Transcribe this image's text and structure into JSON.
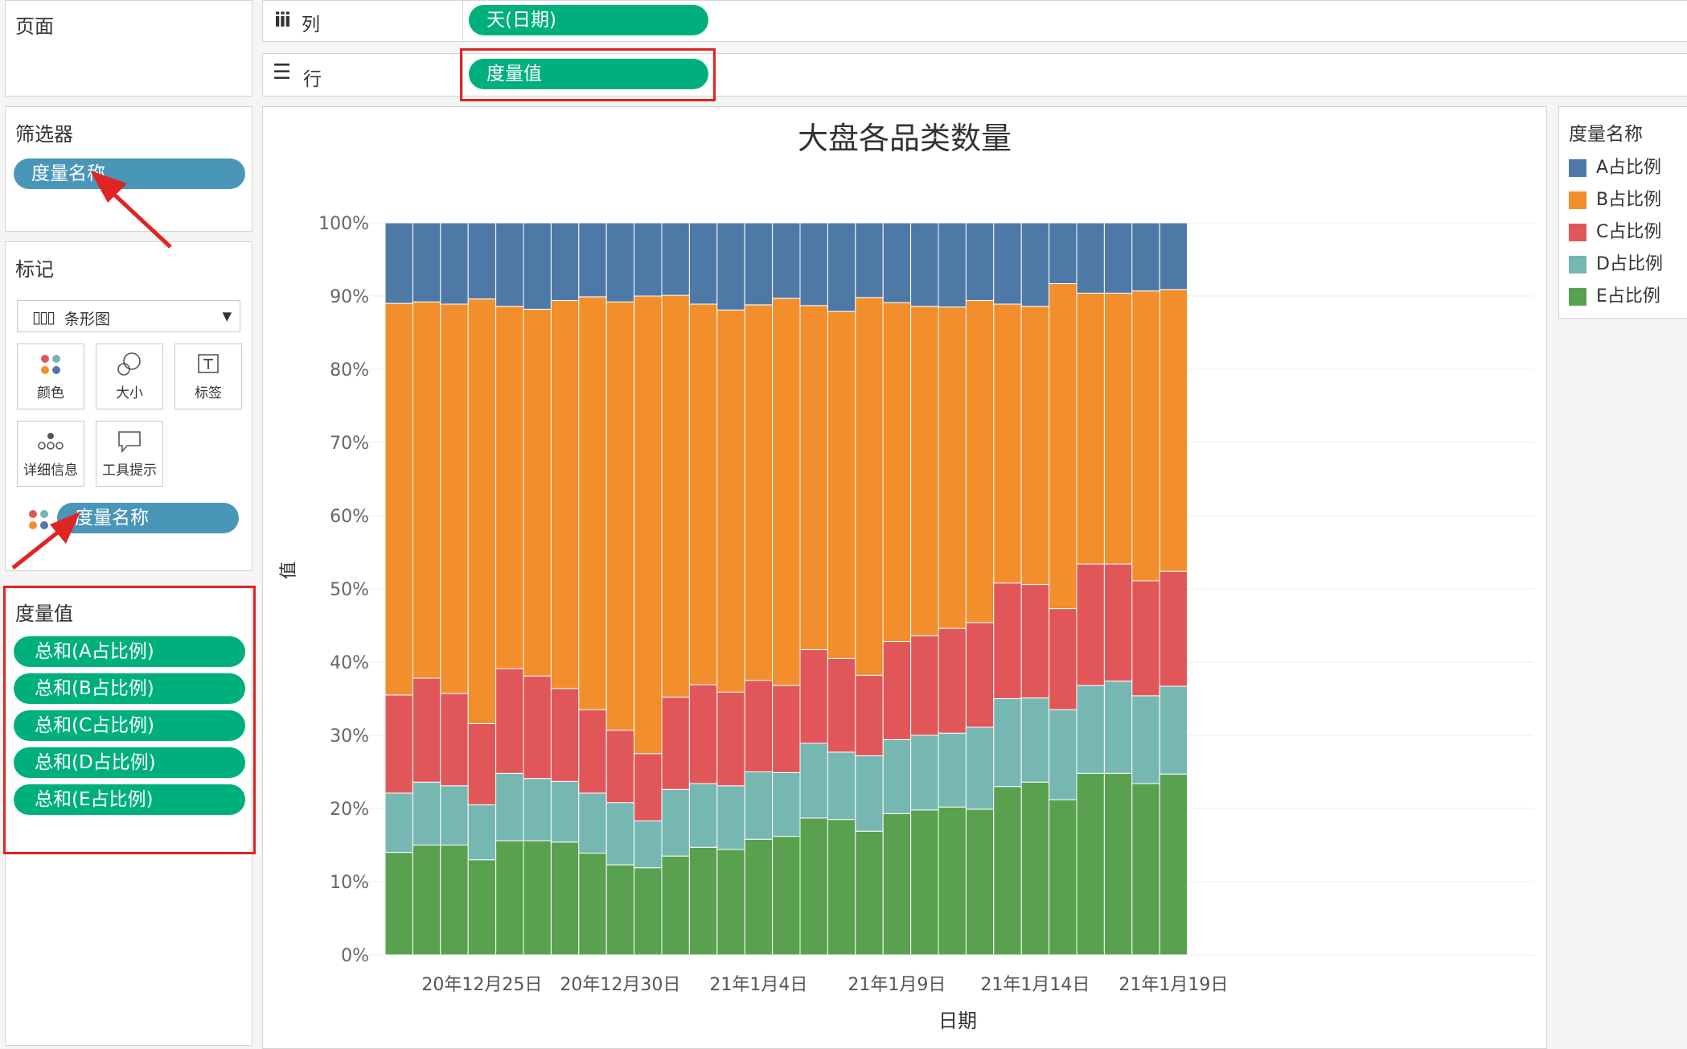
{
  "shelves": {
    "pages_title": "页面",
    "columns_label": "列",
    "columns_pill": "天(日期)",
    "rows_label": "行",
    "rows_pill": "度量值"
  },
  "filters": {
    "title": "筛选器",
    "pill": "度量名称"
  },
  "marks": {
    "title": "标记",
    "type_label": "条形图",
    "buttons": [
      "颜色",
      "大小",
      "标签",
      "详细信息",
      "工具提示"
    ],
    "color_pill": "度量名称"
  },
  "measure_values": {
    "title": "度量值",
    "pills": [
      "总和(A占比例)",
      "总和(B占比例)",
      "总和(C占比例)",
      "总和(D占比例)",
      "总和(E占比例)"
    ]
  },
  "legend": {
    "title": "度量名称",
    "items": [
      {
        "label": "A占比例",
        "color": "#4e79a7"
      },
      {
        "label": "B占比例",
        "color": "#f28e2b"
      },
      {
        "label": "C占比例",
        "color": "#e15759"
      },
      {
        "label": "D占比例",
        "color": "#76b7b2"
      },
      {
        "label": "E占比例",
        "color": "#59a14f"
      }
    ]
  },
  "chart_data": {
    "type": "bar",
    "stacked": true,
    "title": "大盘各品类数量",
    "xlabel": "日期",
    "ylabel": "值",
    "ylim": [
      0,
      1
    ],
    "yticks": [
      "0%",
      "10%",
      "20%",
      "30%",
      "40%",
      "50%",
      "60%",
      "70%",
      "80%",
      "90%",
      "100%"
    ],
    "xtick_labels": [
      "20年12月25日",
      "20年12月30日",
      "21年1月4日",
      "21年1月9日",
      "21年1月14日",
      "21年1月19日"
    ],
    "x": [
      "2020-12-22",
      "2020-12-23",
      "2020-12-24",
      "2020-12-25",
      "2020-12-26",
      "2020-12-27",
      "2020-12-28",
      "2020-12-29",
      "2020-12-30",
      "2020-12-31",
      "2021-01-01",
      "2021-01-02",
      "2021-01-03",
      "2021-01-04",
      "2021-01-05",
      "2021-01-06",
      "2021-01-07",
      "2021-01-08",
      "2021-01-09",
      "2021-01-10",
      "2021-01-11",
      "2021-01-12",
      "2021-01-13",
      "2021-01-14",
      "2021-01-15",
      "2021-01-16",
      "2021-01-17",
      "2021-01-18",
      "2021-01-19",
      "2021-01-20"
    ],
    "series": [
      {
        "name": "E占比例",
        "values": [
          0.14,
          0.15,
          0.15,
          0.13,
          0.156,
          0.156,
          0.154,
          0.139,
          0.123,
          0.119,
          0.135,
          0.147,
          0.144,
          0.158,
          0.162,
          0.187,
          0.185,
          0.169,
          0.193,
          0.198,
          0.202,
          0.199,
          0.23,
          0.236,
          0.212,
          0.248,
          0.248,
          0.234,
          0.247,
          0.0
        ]
      },
      {
        "name": "D占比例",
        "values": [
          0.081,
          0.086,
          0.081,
          0.075,
          0.092,
          0.085,
          0.083,
          0.082,
          0.085,
          0.064,
          0.091,
          0.087,
          0.087,
          0.092,
          0.087,
          0.102,
          0.092,
          0.103,
          0.101,
          0.102,
          0.101,
          0.112,
          0.12,
          0.115,
          0.123,
          0.12,
          0.126,
          0.12,
          0.12,
          0.0
        ]
      },
      {
        "name": "C占比例",
        "values": [
          0.134,
          0.142,
          0.126,
          0.111,
          0.143,
          0.14,
          0.127,
          0.114,
          0.099,
          0.092,
          0.126,
          0.135,
          0.128,
          0.125,
          0.119,
          0.128,
          0.128,
          0.11,
          0.134,
          0.136,
          0.143,
          0.143,
          0.158,
          0.155,
          0.138,
          0.166,
          0.16,
          0.157,
          0.157,
          0.0
        ]
      },
      {
        "name": "B占比例",
        "values": [
          0.535,
          0.514,
          0.532,
          0.58,
          0.495,
          0.501,
          0.53,
          0.564,
          0.585,
          0.625,
          0.549,
          0.52,
          0.522,
          0.513,
          0.529,
          0.47,
          0.474,
          0.516,
          0.463,
          0.45,
          0.439,
          0.44,
          0.381,
          0.38,
          0.444,
          0.37,
          0.37,
          0.396,
          0.385,
          0.0
        ]
      },
      {
        "name": "A占比例",
        "values": [
          0.11,
          0.108,
          0.111,
          0.104,
          0.114,
          0.118,
          0.106,
          0.101,
          0.108,
          0.1,
          0.099,
          0.111,
          0.119,
          0.112,
          0.103,
          0.113,
          0.121,
          0.102,
          0.109,
          0.114,
          0.115,
          0.106,
          0.111,
          0.114,
          0.083,
          0.096,
          0.096,
          0.093,
          0.091,
          0.0
        ]
      }
    ]
  }
}
